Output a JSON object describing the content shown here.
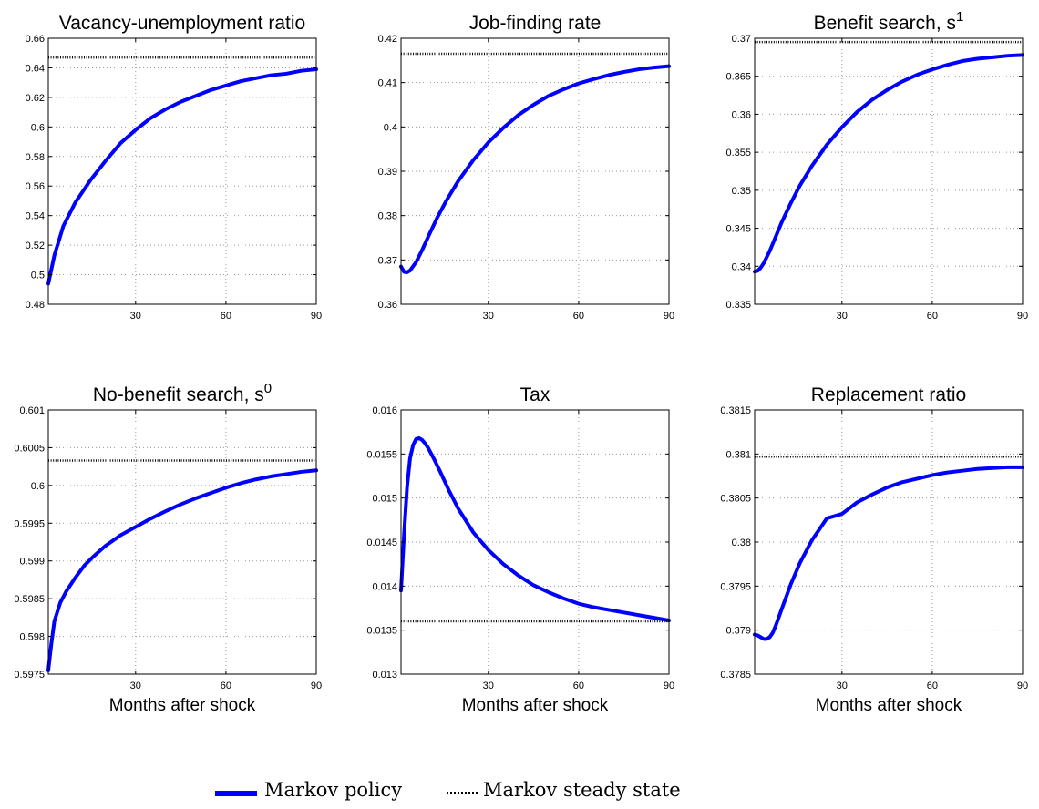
{
  "colors": {
    "policy": "#0000ff",
    "steady_state": "#000000",
    "grid": "#999999"
  },
  "chart_data": [
    {
      "type": "line",
      "title": "Vacancy-unemployment ratio",
      "title_sup": "",
      "xlabel": "",
      "xlim": [
        1,
        90
      ],
      "ylim": [
        0.48,
        0.66
      ],
      "xticks": [
        30,
        60,
        90
      ],
      "xtick_labels": [
        "30",
        "60",
        "90"
      ],
      "yticks": [
        0.48,
        0.5,
        0.52,
        0.54,
        0.56,
        0.58,
        0.6,
        0.62,
        0.64,
        0.66
      ],
      "ytick_labels": [
        "0.48",
        "0.5",
        "0.52",
        "0.54",
        "0.56",
        "0.58",
        "0.6",
        "0.62",
        "0.64",
        "0.66"
      ],
      "grid": true,
      "series": [
        {
          "name": "Markov policy",
          "style": "solid",
          "x": [
            1,
            3,
            6,
            10,
            15,
            20,
            25,
            30,
            35,
            40,
            45,
            50,
            55,
            60,
            65,
            70,
            75,
            80,
            85,
            90
          ],
          "y": [
            0.494,
            0.513,
            0.533,
            0.549,
            0.564,
            0.577,
            0.589,
            0.598,
            0.606,
            0.612,
            0.617,
            0.621,
            0.625,
            0.628,
            0.631,
            0.633,
            0.635,
            0.636,
            0.638,
            0.639
          ]
        },
        {
          "name": "Markov steady state",
          "style": "dotted",
          "x": [
            1,
            90
          ],
          "y": [
            0.647,
            0.647
          ]
        }
      ]
    },
    {
      "type": "line",
      "title": "Job-finding rate",
      "title_sup": "",
      "xlabel": "",
      "xlim": [
        1,
        90
      ],
      "ylim": [
        0.36,
        0.42
      ],
      "xticks": [
        30,
        60,
        90
      ],
      "xtick_labels": [
        "30",
        "60",
        "90"
      ],
      "yticks": [
        0.36,
        0.37,
        0.38,
        0.39,
        0.4,
        0.41,
        0.42
      ],
      "ytick_labels": [
        "0.36",
        "0.37",
        "0.38",
        "0.39",
        "0.4",
        "0.41",
        "0.42"
      ],
      "grid": true,
      "series": [
        {
          "name": "Markov policy",
          "style": "solid",
          "x": [
            1,
            2,
            3,
            4,
            6,
            8,
            10,
            13,
            16,
            20,
            25,
            30,
            35,
            40,
            45,
            50,
            55,
            60,
            65,
            70,
            75,
            80,
            85,
            90
          ],
          "y": [
            0.3685,
            0.3673,
            0.3672,
            0.3676,
            0.3695,
            0.3722,
            0.3752,
            0.3795,
            0.3833,
            0.3878,
            0.3925,
            0.3965,
            0.3998,
            0.4027,
            0.405,
            0.407,
            0.4085,
            0.4098,
            0.4108,
            0.4117,
            0.4124,
            0.413,
            0.4134,
            0.4137
          ]
        },
        {
          "name": "Markov steady state",
          "style": "dotted",
          "x": [
            1,
            90
          ],
          "y": [
            0.4165,
            0.4165
          ]
        }
      ]
    },
    {
      "type": "line",
      "title": "Benefit search, s",
      "title_sup": "1",
      "xlabel": "",
      "xlim": [
        1,
        90
      ],
      "ylim": [
        0.335,
        0.37
      ],
      "xticks": [
        30,
        60,
        90
      ],
      "xtick_labels": [
        "30",
        "60",
        "90"
      ],
      "yticks": [
        0.335,
        0.34,
        0.345,
        0.35,
        0.355,
        0.36,
        0.365,
        0.37
      ],
      "ytick_labels": [
        "0.335",
        "0.34",
        "0.345",
        "0.35",
        "0.355",
        "0.36",
        "0.365",
        "0.37"
      ],
      "grid": true,
      "series": [
        {
          "name": "Markov policy",
          "style": "solid",
          "x": [
            1,
            2,
            3,
            4,
            6,
            8,
            10,
            13,
            16,
            20,
            25,
            30,
            35,
            40,
            45,
            50,
            55,
            60,
            65,
            70,
            75,
            80,
            85,
            90
          ],
          "y": [
            0.3393,
            0.3394,
            0.3398,
            0.3404,
            0.342,
            0.3439,
            0.3458,
            0.3483,
            0.3506,
            0.3532,
            0.356,
            0.3583,
            0.3603,
            0.3619,
            0.3632,
            0.3643,
            0.3652,
            0.3659,
            0.3665,
            0.367,
            0.3673,
            0.3675,
            0.3677,
            0.3678
          ]
        },
        {
          "name": "Markov steady state",
          "style": "dotted",
          "x": [
            1,
            90
          ],
          "y": [
            0.3695,
            0.3695
          ]
        }
      ]
    },
    {
      "type": "line",
      "title": "No-benefit search, s",
      "title_sup": "0",
      "xlabel": "Months after shock",
      "xlim": [
        1,
        90
      ],
      "ylim": [
        0.5975,
        0.601
      ],
      "xticks": [
        30,
        60,
        90
      ],
      "xtick_labels": [
        "30",
        "60",
        "90"
      ],
      "yticks": [
        0.5975,
        0.598,
        0.5985,
        0.599,
        0.5995,
        0.6,
        0.6005,
        0.601
      ],
      "ytick_labels": [
        "0.5975",
        "0.598",
        "0.5985",
        "0.599",
        "0.5995",
        "0.6",
        "0.6005",
        "0.601"
      ],
      "grid": true,
      "series": [
        {
          "name": "Markov policy",
          "style": "solid",
          "x": [
            1,
            2,
            3,
            5,
            7,
            10,
            13,
            16,
            20,
            25,
            30,
            35,
            40,
            45,
            50,
            55,
            60,
            65,
            70,
            75,
            80,
            85,
            90
          ],
          "y": [
            0.59755,
            0.5979,
            0.5982,
            0.59845,
            0.5986,
            0.59878,
            0.59894,
            0.59906,
            0.5992,
            0.59934,
            0.59945,
            0.59956,
            0.59966,
            0.59975,
            0.59983,
            0.5999,
            0.59997,
            0.60003,
            0.60008,
            0.60012,
            0.60015,
            0.60018,
            0.6002
          ]
        },
        {
          "name": "Markov steady state",
          "style": "dotted",
          "x": [
            1,
            90
          ],
          "y": [
            0.60033,
            0.60033
          ]
        }
      ]
    },
    {
      "type": "line",
      "title": "Tax",
      "title_sup": "",
      "xlabel": "Months after shock",
      "xlim": [
        1,
        90
      ],
      "ylim": [
        0.013,
        0.016
      ],
      "xticks": [
        30,
        60,
        90
      ],
      "xtick_labels": [
        "30",
        "60",
        "90"
      ],
      "yticks": [
        0.013,
        0.0135,
        0.014,
        0.0145,
        0.015,
        0.0155,
        0.016
      ],
      "ytick_labels": [
        "0.013",
        "0.0135",
        "0.014",
        "0.0145",
        "0.015",
        "0.0155",
        "0.016"
      ],
      "grid": true,
      "series": [
        {
          "name": "Markov policy",
          "style": "solid",
          "x": [
            1,
            2,
            3,
            4,
            5,
            6,
            7,
            8,
            9,
            10,
            12,
            14,
            17,
            20,
            25,
            30,
            35,
            40,
            45,
            50,
            55,
            60,
            65,
            70,
            75,
            80,
            85,
            90
          ],
          "y": [
            0.01395,
            0.01458,
            0.01512,
            0.01545,
            0.0156,
            0.01567,
            0.01568,
            0.01566,
            0.01562,
            0.01557,
            0.01544,
            0.0153,
            0.01508,
            0.01488,
            0.01461,
            0.01441,
            0.01425,
            0.01412,
            0.01401,
            0.01393,
            0.01386,
            0.0138,
            0.01376,
            0.01373,
            0.0137,
            0.01367,
            0.01364,
            0.01361
          ]
        },
        {
          "name": "Markov steady state",
          "style": "dotted",
          "x": [
            1,
            90
          ],
          "y": [
            0.0136,
            0.0136
          ]
        }
      ]
    },
    {
      "type": "line",
      "title": "Replacement ratio",
      "title_sup": "",
      "xlabel": "Months after shock",
      "xlim": [
        1,
        90
      ],
      "ylim": [
        0.3785,
        0.3815
      ],
      "xticks": [
        30,
        60,
        90
      ],
      "xtick_labels": [
        "30",
        "60",
        "90"
      ],
      "yticks": [
        0.3785,
        0.379,
        0.3795,
        0.38,
        0.3805,
        0.381,
        0.3815
      ],
      "ytick_labels": [
        "0.3785",
        "0.379",
        "0.3795",
        "0.38",
        "0.3805",
        "0.381",
        "0.3815"
      ],
      "grid": true,
      "series": [
        {
          "name": "Markov policy",
          "style": "solid",
          "x": [
            1,
            2,
            3,
            4,
            5,
            6,
            7,
            8,
            10,
            13,
            16,
            20,
            25,
            30,
            35,
            40,
            45,
            50,
            55,
            60,
            65,
            70,
            75,
            80,
            85,
            90
          ],
          "y": [
            0.37895,
            0.37894,
            0.37892,
            0.3789,
            0.3789,
            0.37892,
            0.37897,
            0.37905,
            0.37924,
            0.37952,
            0.37976,
            0.38002,
            0.38027,
            0.38032,
            0.38045,
            0.38054,
            0.38062,
            0.38068,
            0.38072,
            0.38076,
            0.38079,
            0.38081,
            0.38083,
            0.38084,
            0.38085,
            0.38085
          ]
        },
        {
          "name": "Markov steady state",
          "style": "dotted",
          "x": [
            1,
            90
          ],
          "y": [
            0.38097,
            0.38097
          ]
        }
      ]
    }
  ],
  "legend": {
    "policy_label": "Markov policy",
    "steady_label": "Markov steady state"
  }
}
